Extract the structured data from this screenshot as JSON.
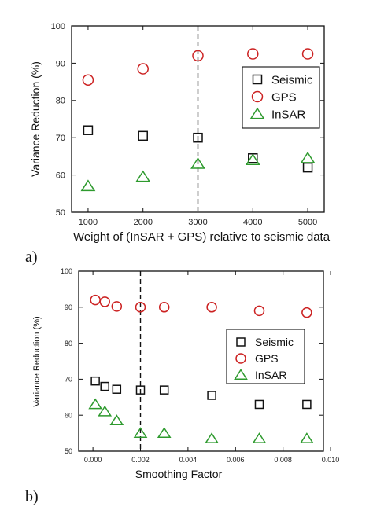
{
  "colors": {
    "seismic": "#111111",
    "gps": "#cc2222",
    "insar": "#2e9a2e"
  },
  "chart_data": [
    {
      "type": "scatter",
      "panel_label": "a)",
      "xlabel": "Weight of (InSAR + GPS) relative to seismic data",
      "ylabel": "Variance Reduction (%)",
      "xlim": [
        700,
        5300
      ],
      "ylim": [
        50,
        100
      ],
      "x_ticks": [
        1000,
        2000,
        3000,
        4000,
        5000
      ],
      "y_ticks": [
        50,
        60,
        70,
        80,
        90,
        100
      ],
      "x_tick_labels": [
        "1000",
        "2000",
        "3000",
        "4000",
        "5000"
      ],
      "y_tick_labels": [
        "50",
        "60",
        "70",
        "80",
        "90",
        "100"
      ],
      "vline": 3000,
      "legend": {
        "placement": "right",
        "entries": [
          "Seismic",
          "GPS",
          "InSAR"
        ]
      },
      "series": [
        {
          "name": "Seismic",
          "marker": "square",
          "x": [
            1000,
            2000,
            3000,
            4000,
            5000
          ],
          "y": [
            72,
            70.5,
            70,
            64.5,
            62
          ]
        },
        {
          "name": "GPS",
          "marker": "circle",
          "x": [
            1000,
            2000,
            3000,
            4000,
            5000
          ],
          "y": [
            85.5,
            88.5,
            92,
            92.5,
            92.5
          ]
        },
        {
          "name": "InSAR",
          "marker": "triangle",
          "x": [
            1000,
            2000,
            3000,
            4000,
            5000
          ],
          "y": [
            57,
            59.5,
            63,
            64,
            64.5
          ]
        }
      ]
    },
    {
      "type": "scatter",
      "panel_label": "b)",
      "xlabel": "Smoothing Factor",
      "ylabel": "Variance Reduction (%)",
      "xlim": [
        -0.0006,
        0.0097
      ],
      "ylim": [
        50,
        100
      ],
      "x_ticks": [
        0,
        0.002,
        0.004,
        0.006,
        0.008,
        0.01
      ],
      "y_ticks": [
        50,
        60,
        70,
        80,
        90,
        100
      ],
      "x_tick_labels": [
        "0.000",
        "0.002",
        "0.004",
        "0.006",
        "0.008",
        "0.010"
      ],
      "y_tick_labels": [
        "50",
        "60",
        "70",
        "80",
        "90",
        "100"
      ],
      "vline": 0.002,
      "legend": {
        "placement": "right",
        "entries": [
          "Seismic",
          "GPS",
          "InSAR"
        ]
      },
      "series": [
        {
          "name": "Seismic",
          "marker": "square",
          "x": [
            0.0001,
            0.0005,
            0.001,
            0.002,
            0.003,
            0.005,
            0.007,
            0.009
          ],
          "y": [
            69.5,
            68,
            67.2,
            67,
            67,
            65.5,
            63,
            63
          ]
        },
        {
          "name": "GPS",
          "marker": "circle",
          "x": [
            0.0001,
            0.0005,
            0.001,
            0.002,
            0.003,
            0.005,
            0.007,
            0.009
          ],
          "y": [
            92,
            91.5,
            90.2,
            90,
            90,
            90,
            89,
            88.5
          ]
        },
        {
          "name": "InSAR",
          "marker": "triangle",
          "x": [
            0.0001,
            0.0005,
            0.001,
            0.002,
            0.003,
            0.005,
            0.007,
            0.009
          ],
          "y": [
            63,
            61,
            58.5,
            55,
            55,
            53.5,
            53.5,
            53.5
          ]
        }
      ]
    }
  ]
}
